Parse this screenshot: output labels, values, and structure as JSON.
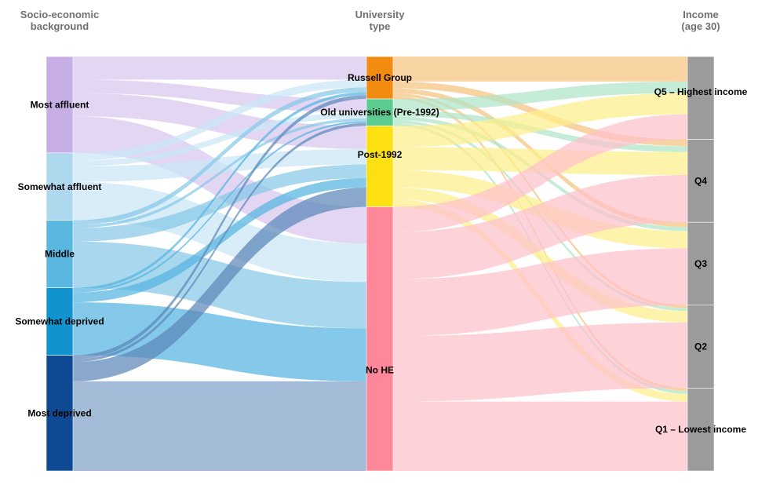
{
  "chart_data": {
    "type": "sankey",
    "columns": [
      {
        "id": "ses",
        "title_lines": [
          "Socio-economic",
          "background"
        ]
      },
      {
        "id": "uni",
        "title_lines": [
          "University",
          "type"
        ]
      },
      {
        "id": "inc",
        "title_lines": [
          "Income",
          "(age 30)"
        ]
      }
    ],
    "nodes": {
      "ses": [
        {
          "id": "most_affluent",
          "label": "Most affluent",
          "value": 100,
          "color": "#c8aee6"
        },
        {
          "id": "somewhat_affluent",
          "label": "Somewhat affluent",
          "value": 70,
          "color": "#aed8ee"
        },
        {
          "id": "middle",
          "label": "Middle",
          "value": 70,
          "color": "#5ab7e0"
        },
        {
          "id": "somewhat_deprived",
          "label": "Somewhat deprived",
          "value": 70,
          "color": "#1193cf"
        },
        {
          "id": "most_deprived",
          "label": "Most deprived",
          "value": 120,
          "color": "#0e4a93"
        }
      ],
      "uni": [
        {
          "id": "russell",
          "label": "Russell Group",
          "value": 44,
          "color": "#f28c10"
        },
        {
          "id": "old",
          "label": "Old universities (Pre-1992)",
          "value": 28,
          "color": "#5bcb8f"
        },
        {
          "id": "post",
          "label": "Post-1992",
          "value": 84,
          "color": "#fde011"
        },
        {
          "id": "nohe",
          "label": "No HE",
          "value": 274,
          "color": "#fe8799"
        }
      ],
      "inc": [
        {
          "id": "q5",
          "label": "Q5 – Highest income",
          "value": 86,
          "color": "#9b9b9b"
        },
        {
          "id": "q4",
          "label": "Q4",
          "value": 86,
          "color": "#9b9b9b"
        },
        {
          "id": "q3",
          "label": "Q3",
          "value": 86,
          "color": "#9b9b9b"
        },
        {
          "id": "q2",
          "label": "Q2",
          "value": 86,
          "color": "#9b9b9b"
        },
        {
          "id": "q1",
          "label": "Q1 – Lowest income",
          "value": 86,
          "color": "#9b9b9b"
        }
      ]
    },
    "links_left": [
      {
        "source": "most_affluent",
        "target": "russell",
        "value": 24,
        "color": "#d8c6ee"
      },
      {
        "source": "most_affluent",
        "target": "old",
        "value": 14,
        "color": "#d8c6ee"
      },
      {
        "source": "most_affluent",
        "target": "post",
        "value": 24,
        "color": "#d8c6ee"
      },
      {
        "source": "most_affluent",
        "target": "nohe",
        "value": 38,
        "color": "#d8c6ee"
      },
      {
        "source": "somewhat_affluent",
        "target": "russell",
        "value": 8,
        "color": "#c9e6f5"
      },
      {
        "source": "somewhat_affluent",
        "target": "old",
        "value": 6,
        "color": "#c9e6f5"
      },
      {
        "source": "somewhat_affluent",
        "target": "post",
        "value": 16,
        "color": "#c9e6f5"
      },
      {
        "source": "somewhat_affluent",
        "target": "nohe",
        "value": 40,
        "color": "#c9e6f5"
      },
      {
        "source": "middle",
        "target": "russell",
        "value": 5,
        "color": "#86c8e8"
      },
      {
        "source": "middle",
        "target": "old",
        "value": 3,
        "color": "#86c8e8"
      },
      {
        "source": "middle",
        "target": "post",
        "value": 14,
        "color": "#86c8e8"
      },
      {
        "source": "middle",
        "target": "nohe",
        "value": 48,
        "color": "#86c8e8"
      },
      {
        "source": "somewhat_deprived",
        "target": "russell",
        "value": 3,
        "color": "#54b4e0"
      },
      {
        "source": "somewhat_deprived",
        "target": "old",
        "value": 2,
        "color": "#54b4e0"
      },
      {
        "source": "somewhat_deprived",
        "target": "post",
        "value": 10,
        "color": "#54b4e0"
      },
      {
        "source": "somewhat_deprived",
        "target": "nohe",
        "value": 55,
        "color": "#54b4e0"
      },
      {
        "source": "most_deprived",
        "target": "russell",
        "value": 4,
        "color": "#5b86b8"
      },
      {
        "source": "most_deprived",
        "target": "old",
        "value": 3,
        "color": "#5b86b8"
      },
      {
        "source": "most_deprived",
        "target": "post",
        "value": 20,
        "color": "#5b86b8"
      },
      {
        "source": "most_deprived",
        "target": "nohe",
        "value": 93,
        "color": "#7fa1c8"
      }
    ],
    "links_right": [
      {
        "source": "russell",
        "target": "q5",
        "value": 26,
        "color": "#f6c47f"
      },
      {
        "source": "russell",
        "target": "q4",
        "value": 7,
        "color": "#f6c47f"
      },
      {
        "source": "russell",
        "target": "q3",
        "value": 5,
        "color": "#f6c47f"
      },
      {
        "source": "russell",
        "target": "q2",
        "value": 3,
        "color": "#f6c47f"
      },
      {
        "source": "russell",
        "target": "q1",
        "value": 3,
        "color": "#f6c47f"
      },
      {
        "source": "old",
        "target": "q5",
        "value": 12,
        "color": "#aee5c7"
      },
      {
        "source": "old",
        "target": "q4",
        "value": 6,
        "color": "#aee5c7"
      },
      {
        "source": "old",
        "target": "q3",
        "value": 4,
        "color": "#aee5c7"
      },
      {
        "source": "old",
        "target": "q2",
        "value": 3,
        "color": "#aee5c7"
      },
      {
        "source": "old",
        "target": "q1",
        "value": 3,
        "color": "#aee5c7"
      },
      {
        "source": "post",
        "target": "q5",
        "value": 22,
        "color": "#fdee8a"
      },
      {
        "source": "post",
        "target": "q4",
        "value": 24,
        "color": "#fdee8a"
      },
      {
        "source": "post",
        "target": "q3",
        "value": 18,
        "color": "#fdee8a"
      },
      {
        "source": "post",
        "target": "q2",
        "value": 12,
        "color": "#fdee8a"
      },
      {
        "source": "post",
        "target": "q1",
        "value": 8,
        "color": "#fdee8a"
      },
      {
        "source": "nohe",
        "target": "q5",
        "value": 26,
        "color": "#fec1cb"
      },
      {
        "source": "nohe",
        "target": "q4",
        "value": 49,
        "color": "#fec1cb"
      },
      {
        "source": "nohe",
        "target": "q3",
        "value": 59,
        "color": "#fec1cb"
      },
      {
        "source": "nohe",
        "target": "q2",
        "value": 68,
        "color": "#fec1cb"
      },
      {
        "source": "nohe",
        "target": "q1",
        "value": 72,
        "color": "#fec1cb"
      }
    ]
  }
}
